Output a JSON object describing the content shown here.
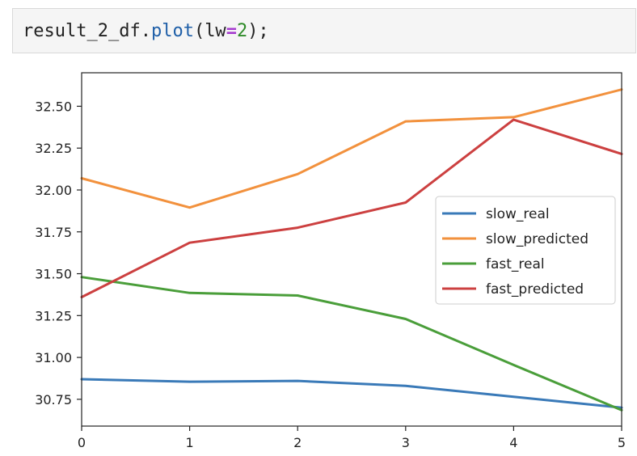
{
  "code_cell": {
    "name_text": "result_2_df",
    "dot_text": ".",
    "method_text": "plot",
    "open_paren": "(",
    "arg_name": "lw",
    "equals_text": "=",
    "arg_value": "2",
    "close_text": ");"
  },
  "chart_data": {
    "type": "line",
    "x": [
      0,
      1,
      2,
      3,
      4,
      5
    ],
    "xticks": [
      "0",
      "1",
      "2",
      "3",
      "4",
      "5"
    ],
    "yticks": [
      "30.75",
      "31.00",
      "31.25",
      "31.50",
      "31.75",
      "32.00",
      "32.25",
      "32.50"
    ],
    "xlim": [
      0,
      5
    ],
    "ylim": [
      30.59,
      32.7
    ],
    "grid": false,
    "legend_position": "center-right",
    "series": [
      {
        "name": "slow_real",
        "color": "#3a7ab8",
        "values": [
          30.87,
          30.855,
          30.86,
          30.83,
          30.765,
          30.7
        ]
      },
      {
        "name": "slow_predicted",
        "color": "#f2913d",
        "values": [
          32.07,
          31.895,
          32.095,
          32.41,
          32.435,
          32.6
        ]
      },
      {
        "name": "fast_real",
        "color": "#4a9e3a",
        "values": [
          31.48,
          31.385,
          31.37,
          31.23,
          30.955,
          30.685
        ]
      },
      {
        "name": "fast_predicted",
        "color": "#cc4040",
        "values": [
          31.36,
          31.685,
          31.775,
          31.925,
          32.42,
          32.215
        ]
      }
    ]
  }
}
